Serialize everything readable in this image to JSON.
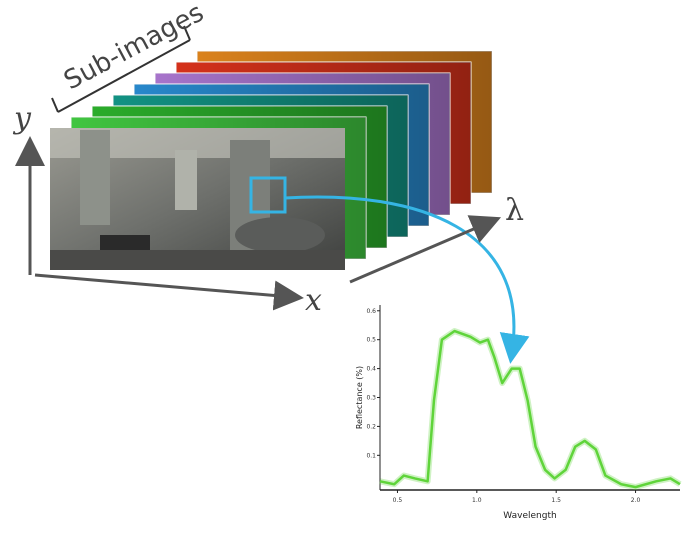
{
  "labels": {
    "sub_images": "Sub-images",
    "y": "y",
    "x": "x",
    "lambda": "λ"
  },
  "layers": [
    "#e6891e",
    "#e0341c",
    "#b07ad6",
    "#2a8fd6",
    "#139a8a",
    "#2db52d",
    "#44d044"
  ],
  "chart_data": {
    "type": "line",
    "xlabel": "Wavelength",
    "ylabel": "Reflectance (%)",
    "x": [
      0.39,
      0.48,
      0.54,
      0.61,
      0.69,
      0.73,
      0.78,
      0.86,
      0.96,
      1.02,
      1.07,
      1.11,
      1.16,
      1.22,
      1.27,
      1.32,
      1.37,
      1.43,
      1.49,
      1.56,
      1.62,
      1.68,
      1.75,
      1.81,
      1.91,
      2.0,
      2.13,
      2.22,
      2.28
    ],
    "series": [
      {
        "color": "#5fd43a",
        "values": [
          0.01,
          0.0,
          0.03,
          0.02,
          0.01,
          0.29,
          0.5,
          0.53,
          0.51,
          0.49,
          0.5,
          0.44,
          0.35,
          0.4,
          0.4,
          0.29,
          0.13,
          0.05,
          0.02,
          0.05,
          0.13,
          0.15,
          0.12,
          0.03,
          0.0,
          -0.01,
          0.01,
          0.02,
          0.0
        ]
      }
    ],
    "xlim": [
      0.39,
      2.28
    ],
    "ylim": [
      -0.02,
      0.62
    ],
    "xticks": [
      0.5,
      {
        "value": 1,
        "label": "1.0"
      },
      1.5,
      {
        "value": 2,
        "label": "2.0"
      }
    ],
    "yticks": [
      0.1,
      0.2,
      0.3,
      0.4,
      0.5,
      0.6
    ]
  }
}
